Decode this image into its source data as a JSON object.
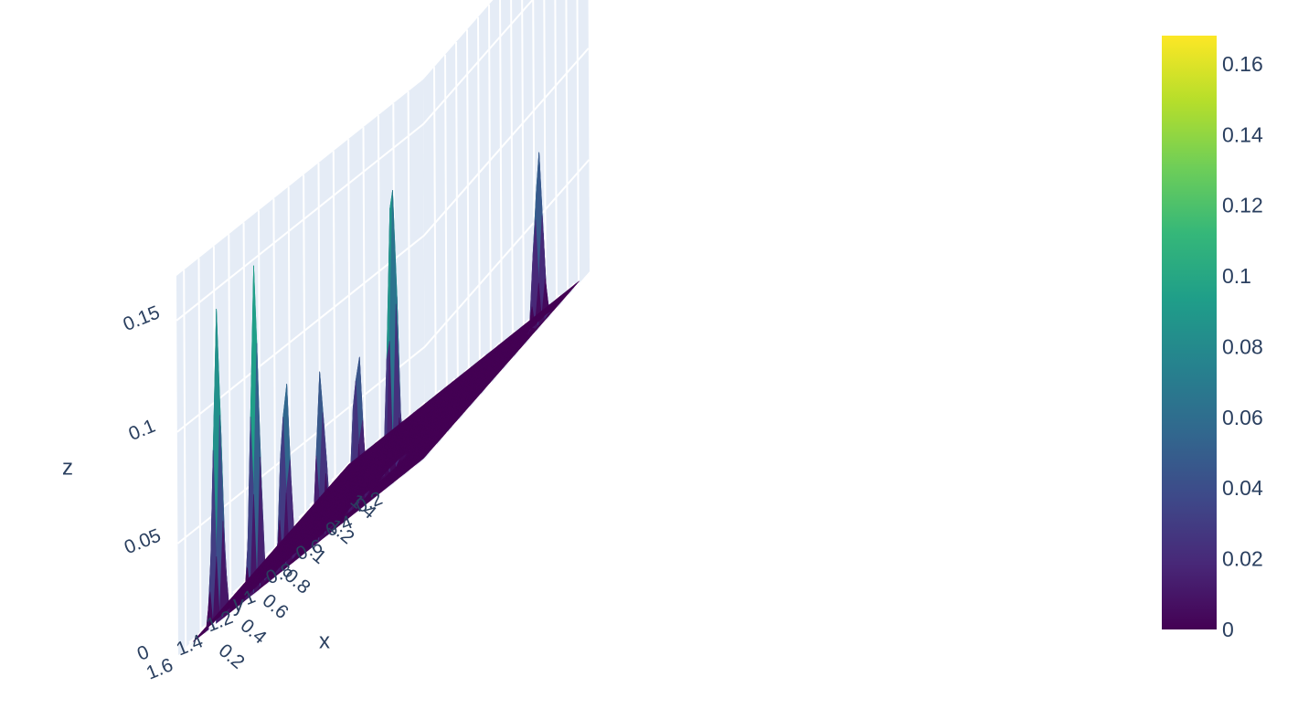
{
  "chart_data": {
    "type": "surface",
    "colorscale": "viridis",
    "colorscale_stops": [
      "#440154",
      "#482878",
      "#3e4989",
      "#31688e",
      "#26828e",
      "#1f9e89",
      "#35b779",
      "#6ece58",
      "#b5de2b",
      "#fde725"
    ],
    "scene_background": "#e5ecf6",
    "grid": true,
    "x_axis": {
      "title": "x",
      "range": [
        0,
        1.5
      ],
      "ticks": [
        "0.2",
        "0.4",
        "0.6",
        "0.8",
        "1",
        "1.2",
        "1.4"
      ]
    },
    "y_axis": {
      "title": "y",
      "range": [
        0,
        1.65
      ],
      "ticks": [
        "0.2",
        "0.4",
        "0.6",
        "0.8",
        "1",
        "1.2",
        "1.4",
        "1.6"
      ]
    },
    "z_axis": {
      "title": "z",
      "range": [
        0,
        0.17
      ],
      "ticks": [
        "0",
        "0.05",
        "0.1",
        "0.15"
      ]
    },
    "colorbar": {
      "min": 0,
      "max": 0.168,
      "ticks": [
        "0",
        "0.02",
        "0.04",
        "0.06",
        "0.08",
        "0.1",
        "0.12",
        "0.14",
        "0.16"
      ]
    },
    "peaks": [
      {
        "x": 0.09,
        "y": 1.45,
        "z": 0.145
      },
      {
        "x": 0.12,
        "y": 1.22,
        "z": 0.155
      },
      {
        "x": 0.16,
        "y": 1.05,
        "z": 0.105
      },
      {
        "x": 0.12,
        "y": 0.78,
        "z": 0.085
      },
      {
        "x": 0.26,
        "y": 0.64,
        "z": 0.088
      },
      {
        "x": 0.46,
        "y": 0.55,
        "z": 0.155
      },
      {
        "x": 1.2,
        "y": 0.12,
        "z": 0.088
      }
    ]
  }
}
